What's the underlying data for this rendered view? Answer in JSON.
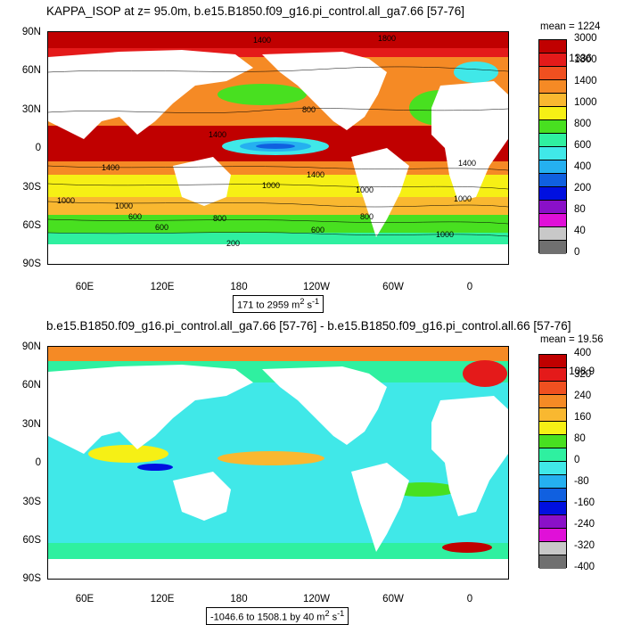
{
  "panel1": {
    "title": "KAPPA_ISOP at z=  95.0m, b.e15.B1850.f09_g16.pi_control.all_ga7.66 [57-76]",
    "stats": {
      "mean": "mean = 1224",
      "rms": "rms = 1336"
    },
    "lat_labels": [
      "90N",
      "60N",
      "30N",
      "0",
      "30S",
      "60S",
      "90S"
    ],
    "lon_labels": [
      "60E",
      "120E",
      "180",
      "120W",
      "60W",
      "0"
    ],
    "range_text": "171 to 2959 m",
    "range_unit_sup": "2",
    "range_suffix": " s",
    "range_suffix_sup": "-1",
    "colorbar_labels": [
      "3000",
      "1800",
      "1400",
      "1000",
      "800",
      "600",
      "400",
      "200",
      "80",
      "40",
      "0"
    ],
    "colorbar_colors": [
      "#c00000",
      "#e41a1a",
      "#f05020",
      "#f58a25",
      "#f9b830",
      "#f6f015",
      "#48e020",
      "#2ff0a0",
      "#40e8e8",
      "#25b0f0",
      "#1060e0",
      "#0010e0",
      "#8a10c8",
      "#e010d8",
      "#c8c8c8",
      "#707070"
    ],
    "contour_labels": [
      "1400",
      "1800",
      "800",
      "1400",
      "1400",
      "1000",
      "1000",
      "1000",
      "600",
      "800",
      "600",
      "200",
      "1400",
      "1000",
      "800",
      "1000",
      "1000",
      "600",
      "1400"
    ]
  },
  "panel2": {
    "title": "b.e15.B1850.f09_g16.pi_control.all_ga7.66 [57-76] - b.e15.B1850.f09_g16.pi_control.all.66 [57-76]",
    "stats": {
      "mean": "mean = 19.56",
      "rms": "rms = 108.9"
    },
    "lat_labels": [
      "90N",
      "60N",
      "30N",
      "0",
      "30S",
      "60S",
      "90S"
    ],
    "lon_labels": [
      "60E",
      "120E",
      "180",
      "120W",
      "60W",
      "0"
    ],
    "range_text": "-1046.6 to 1508.1 by 40 m",
    "range_unit_sup": "2",
    "range_suffix": " s",
    "range_suffix_sup": "-1",
    "colorbar_labels": [
      "400",
      "320",
      "240",
      "160",
      "80",
      "0",
      "-80",
      "-160",
      "-240",
      "-320",
      "-400"
    ],
    "colorbar_colors": [
      "#c00000",
      "#e41a1a",
      "#f05020",
      "#f58a25",
      "#f9b830",
      "#f6f015",
      "#48e020",
      "#2ff0a0",
      "#40e8e8",
      "#25b0f0",
      "#1060e0",
      "#0010e0",
      "#8a10c8",
      "#e010d8",
      "#c8c8c8",
      "#707070"
    ]
  }
}
